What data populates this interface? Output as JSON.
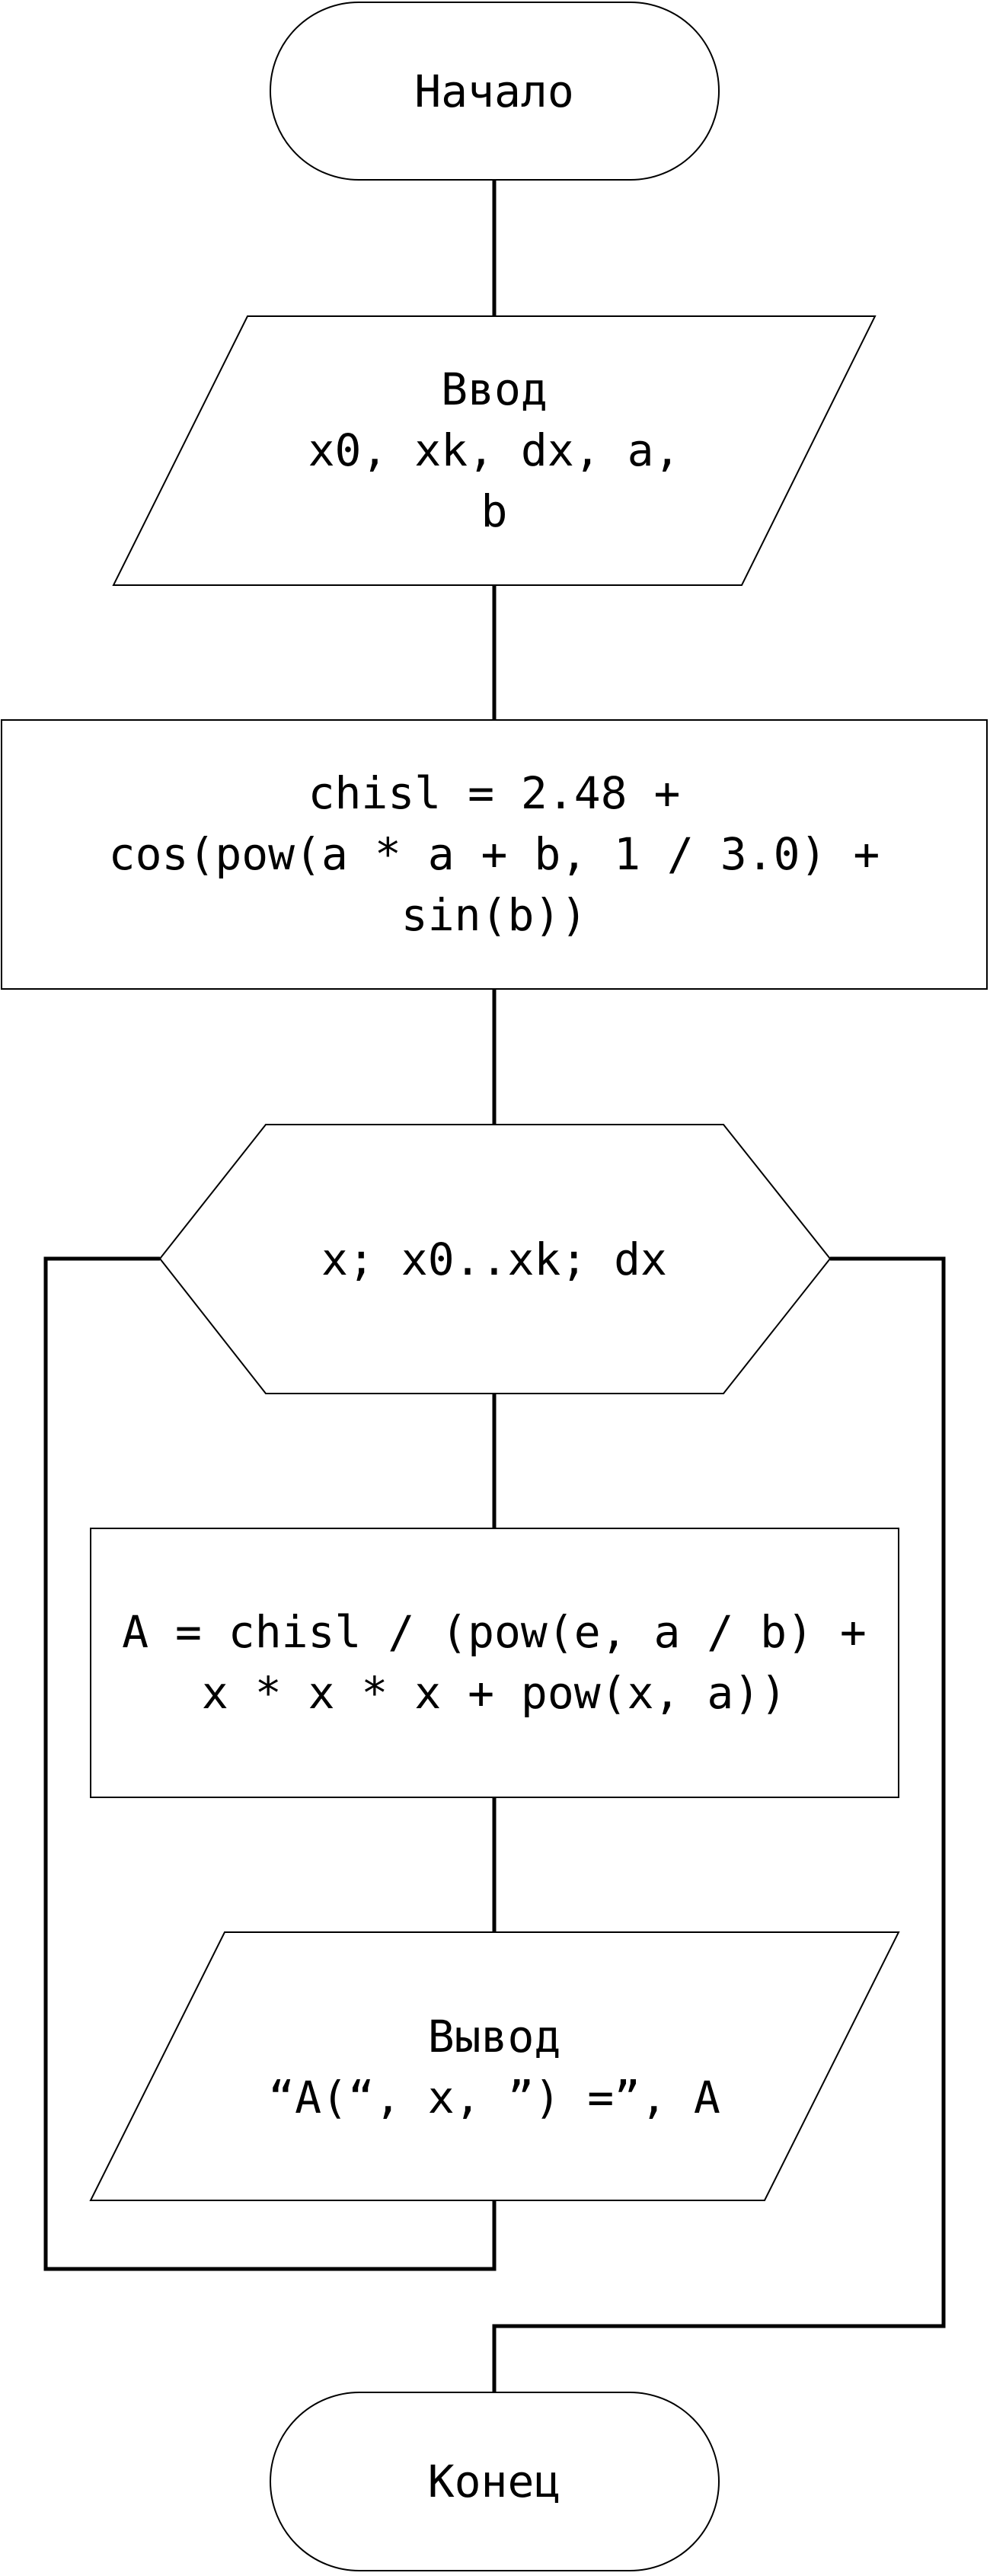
{
  "flowchart": {
    "colors": {
      "stroke": "#000000",
      "fill": "#ffffff",
      "text": "#000000"
    },
    "start": {
      "line1": "Начало"
    },
    "input": {
      "line1": "Ввод",
      "line2": "x0, xk, dx, a,",
      "line3": "b"
    },
    "process_chisl": {
      "line1": "chisl = 2.48 +",
      "line2": "cos(pow(a * a + b, 1 / 3.0) +",
      "line3": "sin(b))"
    },
    "loop": {
      "line1": "x; x0..xk; dx"
    },
    "process_a": {
      "line1": "A = chisl / (pow(e, a / b) +",
      "line2": "x * x * x + pow(x, a))"
    },
    "output": {
      "line1": "Вывод",
      "line2": "“A(“, x, ”) =”, A"
    },
    "end": {
      "line1": "Конец"
    }
  }
}
